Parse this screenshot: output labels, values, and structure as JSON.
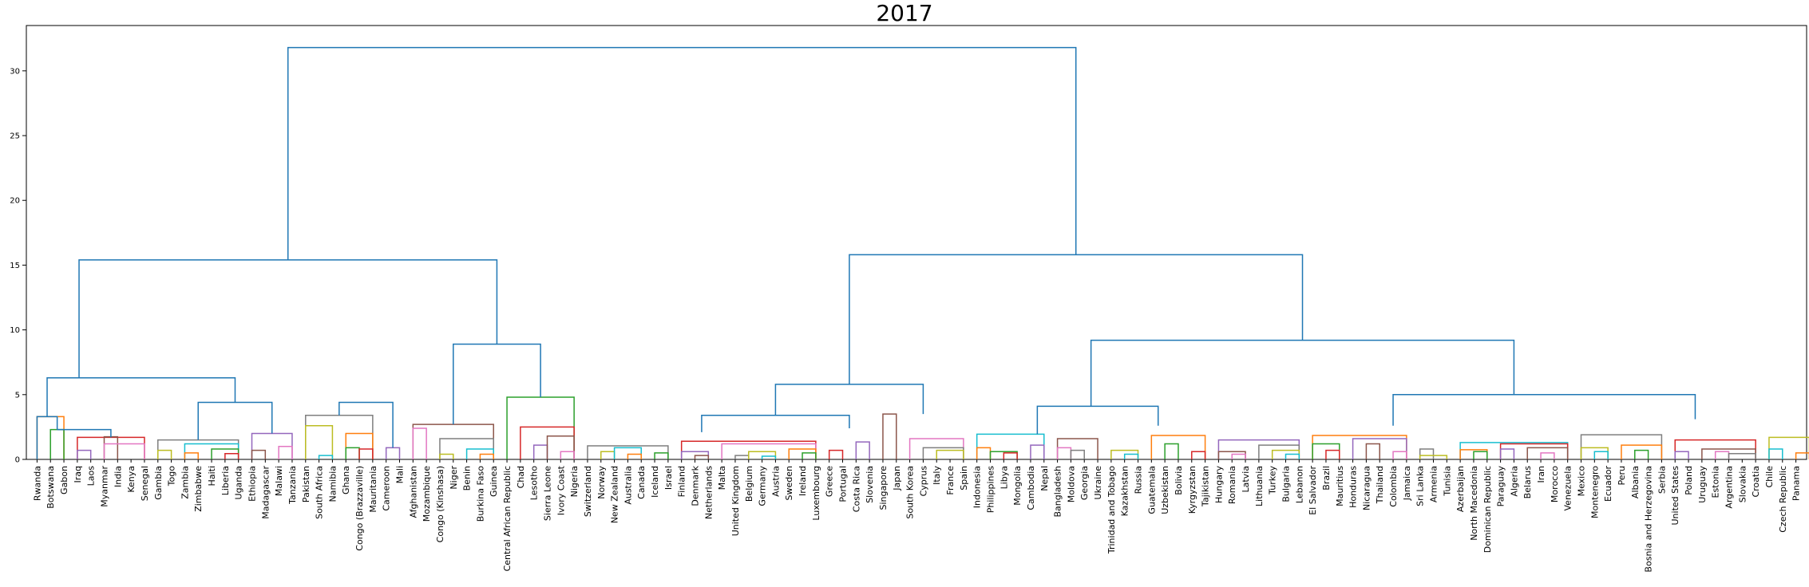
{
  "chart_data": {
    "type": "dendrogram",
    "title": "2017",
    "xlabel": "",
    "ylabel": "",
    "ylim": [
      0,
      33.5
    ],
    "yticks": [
      0,
      5,
      10,
      15,
      20,
      25,
      30
    ],
    "labels": [
      "Rwanda",
      "Botswana",
      "Gabon",
      "Iraq",
      "Laos",
      "Myanmar",
      "India",
      "Kenya",
      "Senegal",
      "Gambia",
      "Togo",
      "Zambia",
      "Zimbabwe",
      "Haiti",
      "Liberia",
      "Uganda",
      "Ethiopia",
      "Madagascar",
      "Malawi",
      "Tanzania",
      "Pakistan",
      "South Africa",
      "Namibia",
      "Ghana",
      "Congo (Brazzaville)",
      "Mauritania",
      "Cameroon",
      "Mali",
      "Afghanistan",
      "Mozambique",
      "Congo (Kinshasa)",
      "Niger",
      "Benin",
      "Burkina Faso",
      "Guinea",
      "Central African Republic",
      "Chad",
      "Lesotho",
      "Sierra Leone",
      "Ivory Coast",
      "Nigeria",
      "Switzerland",
      "Norway",
      "New Zealand",
      "Australia",
      "Canada",
      "Iceland",
      "Israel",
      "Finland",
      "Denmark",
      "Netherlands",
      "Malta",
      "United Kingdom",
      "Belgium",
      "Germany",
      "Austria",
      "Sweden",
      "Ireland",
      "Luxembourg",
      "Greece",
      "Portugal",
      "Costa Rica",
      "Slovenia",
      "Singapore",
      "Japan",
      "South Korea",
      "Cyprus",
      "Italy",
      "France",
      "Spain",
      "Indonesia",
      "Philippines",
      "Libya",
      "Mongolia",
      "Cambodia",
      "Nepal",
      "Bangladesh",
      "Moldova",
      "Georgia",
      "Ukraine",
      "Trinidad and Tobago",
      "Kazakhstan",
      "Russia",
      "Guatemala",
      "Uzbekistan",
      "Bolivia",
      "Kyrgyzstan",
      "Tajikistan",
      "Hungary",
      "Romania",
      "Latvia",
      "Lithuania",
      "Turkey",
      "Bulgaria",
      "Lebanon",
      "El Salvador",
      "Brazil",
      "Mauritius",
      "Honduras",
      "Nicaragua",
      "Thailand",
      "Colombia",
      "Jamaica",
      "Sri Lanka",
      "Armenia",
      "Tunisia",
      "Azerbaijan",
      "North Macedonia",
      "Dominican Republic",
      "Paraguay",
      "Algeria",
      "Belarus",
      "Iran",
      "Morocco",
      "Venezuela",
      "Mexico",
      "Montenegro",
      "Ecuador",
      "Peru",
      "Albania",
      "Bosnia and Herzegovina",
      "Serbia",
      "United States",
      "Poland",
      "Uruguay",
      "Estonia",
      "Argentina",
      "Slovakia",
      "Croatia",
      "Chile",
      "Czech Republic",
      "Panama"
    ],
    "merges": [
      [
        0,
        2,
        3.3
      ],
      [
        1,
        2,
        2.3
      ],
      [
        3,
        8,
        1.7
      ],
      [
        3,
        4,
        0.7
      ],
      [
        5,
        6,
        1.75
      ],
      [
        5,
        8,
        1.2
      ],
      [
        9,
        15,
        1.5
      ],
      [
        9,
        10,
        0.7
      ],
      [
        11,
        15,
        1.2
      ],
      [
        11,
        12,
        0.5
      ],
      [
        13,
        15,
        0.8
      ],
      [
        14,
        15,
        0.45
      ],
      [
        16,
        19,
        2.0
      ],
      [
        16,
        17,
        0.7
      ],
      [
        18,
        19,
        1.0
      ],
      [
        20,
        25,
        3.4
      ],
      [
        20,
        22,
        2.6
      ],
      [
        21,
        22,
        0.3
      ],
      [
        23,
        25,
        2.0
      ],
      [
        23,
        24,
        0.9
      ],
      [
        24,
        25,
        0.8
      ],
      [
        26,
        27,
        0.9
      ],
      [
        28,
        34,
        2.7
      ],
      [
        28,
        29,
        2.4
      ],
      [
        30,
        34,
        1.6
      ],
      [
        30,
        31,
        0.4
      ],
      [
        32,
        34,
        0.8
      ],
      [
        33,
        34,
        0.4
      ],
      [
        35,
        40,
        4.8
      ],
      [
        36,
        40,
        2.5
      ],
      [
        37,
        38,
        1.1
      ],
      [
        38,
        40,
        1.8
      ],
      [
        39,
        40,
        0.6
      ],
      [
        41,
        47,
        1.05
      ],
      [
        42,
        43,
        0.6
      ],
      [
        43,
        45,
        0.9
      ],
      [
        44,
        45,
        0.4
      ],
      [
        46,
        47,
        0.5
      ],
      [
        48,
        58,
        1.4
      ],
      [
        48,
        50,
        0.6
      ],
      [
        49,
        50,
        0.3
      ],
      [
        51,
        58,
        1.2
      ],
      [
        52,
        53,
        0.3
      ],
      [
        53,
        55,
        0.6
      ],
      [
        54,
        55,
        0.25
      ],
      [
        56,
        58,
        0.8
      ],
      [
        57,
        58,
        0.5
      ],
      [
        59,
        60,
        0.7
      ],
      [
        61,
        62,
        1.35
      ],
      [
        63,
        64,
        3.5
      ],
      [
        65,
        69,
        1.6
      ],
      [
        66,
        69,
        0.9
      ],
      [
        67,
        69,
        0.7
      ],
      [
        70,
        75,
        1.95
      ],
      [
        70,
        71,
        0.9
      ],
      [
        71,
        73,
        0.6
      ],
      [
        72,
        73,
        0.5
      ],
      [
        74,
        75,
        1.1
      ],
      [
        76,
        79,
        1.6
      ],
      [
        76,
        77,
        0.9
      ],
      [
        77,
        78,
        0.7
      ],
      [
        80,
        82,
        0.7
      ],
      [
        81,
        82,
        0.4
      ],
      [
        83,
        87,
        1.85
      ],
      [
        84,
        85,
        1.2
      ],
      [
        86,
        87,
        0.6
      ],
      [
        88,
        94,
        1.5
      ],
      [
        88,
        90,
        0.6
      ],
      [
        89,
        90,
        0.4
      ],
      [
        91,
        94,
        1.1
      ],
      [
        92,
        94,
        0.7
      ],
      [
        93,
        94,
        0.4
      ],
      [
        95,
        102,
        1.85
      ],
      [
        95,
        97,
        1.2
      ],
      [
        96,
        97,
        0.7
      ],
      [
        98,
        102,
        1.6
      ],
      [
        99,
        100,
        1.2
      ],
      [
        101,
        102,
        0.6
      ],
      [
        103,
        104,
        0.8
      ],
      [
        103,
        105,
        0.3
      ],
      [
        106,
        114,
        1.3
      ],
      [
        106,
        108,
        0.75
      ],
      [
        107,
        108,
        0.6
      ],
      [
        109,
        114,
        1.2
      ],
      [
        109,
        110,
        0.8
      ],
      [
        111,
        114,
        0.9
      ],
      [
        112,
        113,
        0.5
      ],
      [
        115,
        121,
        1.9
      ],
      [
        115,
        117,
        0.9
      ],
      [
        116,
        117,
        0.6
      ],
      [
        118,
        121,
        1.1
      ],
      [
        119,
        120,
        0.7
      ],
      [
        122,
        128,
        1.5
      ],
      [
        122,
        123,
        0.6
      ],
      [
        124,
        128,
        0.8
      ],
      [
        125,
        126,
        0.6
      ],
      [
        126,
        128,
        0.45
      ],
      [
        129,
        132,
        1.7
      ],
      [
        129,
        130,
        0.8
      ],
      [
        131,
        132,
        0.5
      ],
      [
        0,
        8,
        0
      ],
      [
        9,
        19,
        0
      ]
    ]
  }
}
